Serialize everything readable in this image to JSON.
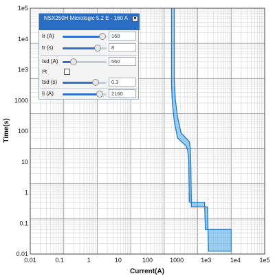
{
  "panel": {
    "title": "NSX250H Micrologic 5.2 E - 160 A",
    "ir": {
      "label": "Ir (A)",
      "value": "160",
      "level": 0.9
    },
    "tr": {
      "label": "tr (s)",
      "value": "8",
      "level": 0.8
    },
    "isd": {
      "label": "Isd (A)",
      "value": "560",
      "level": 0.25
    },
    "i2t": {
      "label": "I²t",
      "checked": false
    },
    "tsd": {
      "label": "tsd (s)",
      "value": "0.3",
      "level": 0.75
    },
    "ii": {
      "label": "Ii (A)",
      "value": "2160",
      "level": 0.85
    },
    "save_icon": "floppy-disk-icon"
  },
  "chart_data": {
    "type": "line",
    "xlabel": "Current(A)",
    "ylabel": "Time(s)",
    "xscale": "log",
    "yscale": "log",
    "xlim": [
      0.01,
      100000
    ],
    "ylim": [
      0.01,
      100000
    ],
    "x_ticks": [
      "0.01",
      "0.1",
      "1",
      "10",
      "100",
      "1000",
      "1e3",
      "1e4",
      "1e5"
    ],
    "y_ticks": [
      "0.01",
      "0.1",
      "1",
      "10",
      "100",
      "1000",
      "1e3",
      "1e4",
      "1e5"
    ],
    "grid": true,
    "band_color": "#4aa8e8",
    "line_color": "#1f78c8",
    "series": [
      {
        "points_left": [
          [
            165,
            100000
          ],
          [
            165,
            700
          ],
          [
            175,
            200
          ],
          [
            200,
            60
          ],
          [
            250,
            20
          ],
          [
            450,
            12
          ],
          [
            500,
            9
          ],
          [
            540,
            5
          ],
          [
            560,
            0.3
          ],
          [
            1600,
            0.3
          ],
          [
            1700,
            0.05
          ],
          [
            10000,
            0.05
          ]
        ],
        "points_right": [
          [
            200,
            100000
          ],
          [
            200,
            900
          ],
          [
            215,
            250
          ],
          [
            250,
            80
          ],
          [
            320,
            28
          ],
          [
            560,
            16
          ],
          [
            600,
            10
          ],
          [
            620,
            5
          ],
          [
            650,
            0.22
          ],
          [
            1950,
            0.22
          ],
          [
            2100,
            0.012
          ],
          [
            10000,
            0.012
          ]
        ]
      }
    ]
  }
}
